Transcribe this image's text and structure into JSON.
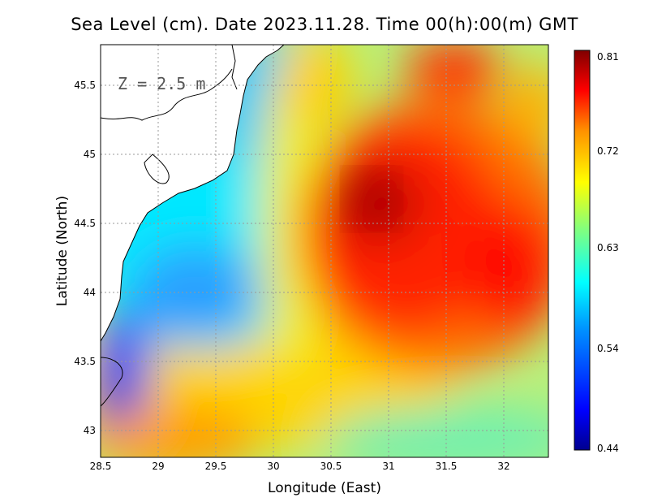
{
  "title": "Sea Level (cm). Date 2023.11.28. Time 00(h):00(m) GMT",
  "depth_label": "Z = 2.5 m",
  "x_axis": {
    "label": "Longitude (East)",
    "range": [
      28.5,
      32.4
    ],
    "ticks": [
      "28.5",
      "29",
      "29.5",
      "30",
      "30.5",
      "31",
      "31.5",
      "32"
    ]
  },
  "y_axis": {
    "label": "Latitude (North)",
    "range": [
      42.8,
      45.8
    ],
    "ticks": [
      "43",
      "43.5",
      "44",
      "44.5",
      "45",
      "45.5"
    ]
  },
  "colorbar": {
    "ticks": [
      "0.81",
      "0.72",
      "0.63",
      "0.54",
      "0.44"
    ],
    "min": 0.44,
    "max": 0.81,
    "colors": [
      "#00008f",
      "#0000ff",
      "#0080ff",
      "#00ffff",
      "#80ff80",
      "#ffff00",
      "#ff8000",
      "#ff0000",
      "#800000"
    ]
  }
}
